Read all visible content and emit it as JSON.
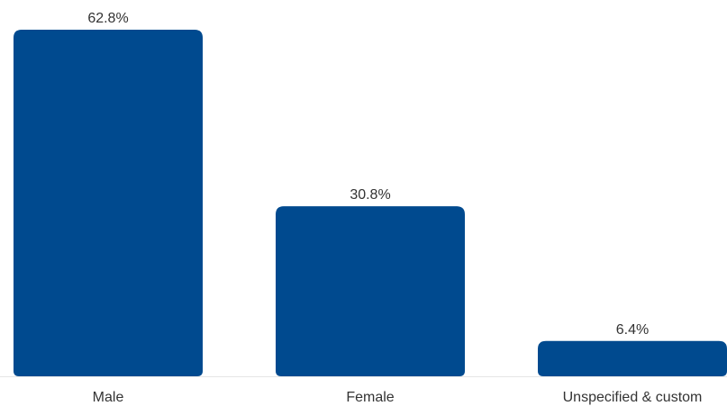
{
  "chart_data": {
    "type": "bar",
    "categories": [
      "Male",
      "Female",
      "Unspecified & custom"
    ],
    "values": [
      62.8,
      30.8,
      6.4
    ],
    "value_labels": [
      "62.8%",
      "30.8%",
      "6.4%"
    ],
    "unit": "%",
    "ylim": [
      0,
      62.8
    ],
    "grid": false,
    "legend": "none",
    "bar_color": "#004a8f",
    "baseline_color": "#e6e6e6",
    "text_color": "#333333"
  }
}
